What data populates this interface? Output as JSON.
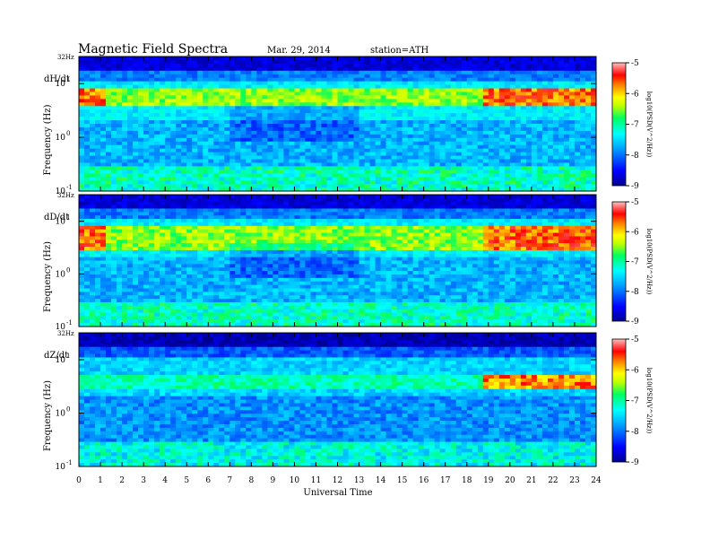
{
  "header": {
    "title": "Magnetic  Field  Spectra",
    "date": "Mar. 29, 2014",
    "station": "station=ATH"
  },
  "chart_data": [
    {
      "type": "heatmap",
      "panel_label": "dH/dt",
      "ylabel": "Frequency  (Hz)",
      "y_scale": "log",
      "y_top_label": "32Hz",
      "ylim_hz": [
        0.1,
        32
      ],
      "y_ticks": [
        {
          "label": "10",
          "exp": "-1",
          "value": 0.1
        },
        {
          "label": "10",
          "exp": "0",
          "value": 1
        },
        {
          "label": "10",
          "exp": "1",
          "value": 10
        }
      ],
      "xlim_ut": [
        0,
        24
      ],
      "colorbar": {
        "label": "log10(PSD(V^2/Hz))",
        "range": [
          -9,
          -5
        ],
        "ticks": [
          "-5",
          "-6",
          "-7",
          "-8",
          "-9"
        ]
      },
      "features": {
        "resonance_band_hz": [
          4,
          8
        ],
        "resonance_strong_ut": [
          [
            0,
            1.2
          ],
          [
            18.8,
            24
          ]
        ]
      }
    },
    {
      "type": "heatmap",
      "panel_label": "dD/dt",
      "ylabel": "Frequency  (Hz)",
      "y_scale": "log",
      "y_top_label": "32Hz",
      "ylim_hz": [
        0.1,
        32
      ],
      "y_ticks": [
        {
          "label": "10",
          "exp": "-1",
          "value": 0.1
        },
        {
          "label": "10",
          "exp": "0",
          "value": 1
        },
        {
          "label": "10",
          "exp": "1",
          "value": 10
        }
      ],
      "xlim_ut": [
        0,
        24
      ],
      "colorbar": {
        "label": "log10(PSD(V^2/Hz))",
        "range": [
          -9,
          -5
        ],
        "ticks": [
          "-5",
          "-6",
          "-7",
          "-8",
          "-9"
        ]
      },
      "features": {
        "resonance_band_hz": [
          3,
          8
        ],
        "resonance_strong_ut": [
          [
            0,
            1.2
          ],
          [
            18.8,
            24
          ]
        ]
      }
    },
    {
      "type": "heatmap",
      "panel_label": "dZ/dt",
      "ylabel": "Frequency  (Hz)",
      "y_scale": "log",
      "y_top_label": "32Hz",
      "ylim_hz": [
        0.1,
        32
      ],
      "y_ticks": [
        {
          "label": "10",
          "exp": "-1",
          "value": 0.1
        },
        {
          "label": "10",
          "exp": "0",
          "value": 1
        },
        {
          "label": "10",
          "exp": "1",
          "value": 10
        }
      ],
      "xlim_ut": [
        0,
        24
      ],
      "colorbar": {
        "label": "log10(PSD(V^2/Hz))",
        "range": [
          -9,
          -5
        ],
        "ticks": [
          "-5",
          "-6",
          "-7",
          "-8",
          "-9"
        ]
      },
      "features": {
        "resonance_band_hz": [
          3,
          5
        ],
        "resonance_strong_ut": [
          [
            18.8,
            24
          ]
        ]
      }
    }
  ],
  "x_axis": {
    "label": "Universal Time",
    "ticks": [
      "0",
      "1",
      "2",
      "3",
      "4",
      "5",
      "6",
      "7",
      "8",
      "9",
      "10",
      "11",
      "12",
      "13",
      "14",
      "15",
      "16",
      "17",
      "18",
      "19",
      "20",
      "21",
      "22",
      "23",
      "24"
    ]
  },
  "colors": {
    "colormap": [
      "#00008f",
      "#0000ff",
      "#00a0ff",
      "#00ffff",
      "#00ff80",
      "#80ff00",
      "#ffff00",
      "#ff8000",
      "#ff0000",
      "#ffb0b0"
    ]
  }
}
